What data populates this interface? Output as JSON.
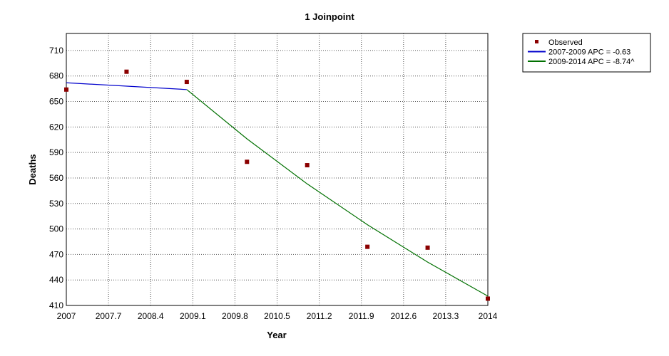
{
  "chart_data": {
    "type": "line",
    "title": "1 Joinpoint",
    "xlabel": "Year",
    "ylabel": "Deaths",
    "xlim": [
      2007,
      2014
    ],
    "ylim": [
      410,
      730
    ],
    "x_ticks": [
      "2007",
      "2007.7",
      "2008.4",
      "2009.1",
      "2009.8",
      "2010.5",
      "2011.2",
      "2011.9",
      "2012.6",
      "2013.3",
      "2014"
    ],
    "y_ticks": [
      "410",
      "440",
      "470",
      "500",
      "530",
      "560",
      "590",
      "620",
      "650",
      "680",
      "710"
    ],
    "grid": true,
    "legend_position": "right",
    "series": [
      {
        "name": "Observed",
        "kind": "scatter",
        "color": "#8b0000",
        "x": [
          2007,
          2008,
          2009,
          2010,
          2011,
          2012,
          2013,
          2014
        ],
        "y": [
          664,
          685,
          673,
          579,
          575,
          479,
          478,
          418
        ]
      },
      {
        "name": "2007-2009 APC  = -0.63",
        "kind": "line",
        "color": "#0000cc",
        "x": [
          2007,
          2009
        ],
        "y": [
          672,
          664
        ]
      },
      {
        "name": "2009-2014 APC  = -8.74^",
        "kind": "line",
        "color": "#007000",
        "x": [
          2009,
          2010,
          2011,
          2012,
          2013,
          2014
        ],
        "y": [
          664,
          606,
          553,
          505,
          461,
          421
        ]
      }
    ]
  }
}
